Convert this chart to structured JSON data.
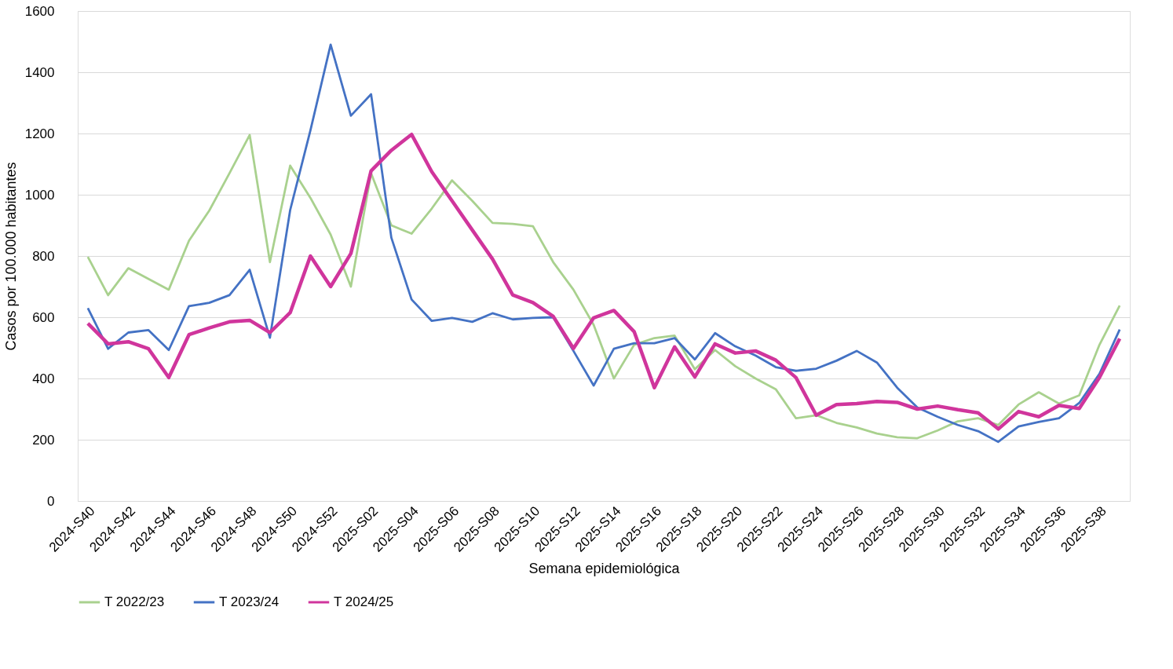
{
  "chart_data": {
    "type": "line",
    "xlabel": "Semana epidemiológica",
    "ylabel": "Casos por 100.000 habitantes",
    "categories": [
      "2024-S40",
      null,
      "2024-S42",
      null,
      "2024-S44",
      null,
      "2024-S46",
      null,
      "2024-S48",
      null,
      "2024-S50",
      null,
      "2024-S52",
      null,
      "2025-S02",
      null,
      "2025-S04",
      null,
      "2025-S06",
      null,
      "2025-S08",
      null,
      "2025-S10",
      null,
      "2025-S12",
      null,
      "2025-S14",
      null,
      "2025-S16",
      null,
      "2025-S18",
      null,
      "2025-S20",
      null,
      "2025-S22",
      null,
      "2025-S24",
      null,
      "2025-S26",
      null,
      "2025-S28",
      null,
      "2025-S30",
      null,
      "2025-S32",
      null,
      "2025-S34",
      null,
      "2025-S36",
      null,
      "2025-S38",
      null
    ],
    "ylim": [
      0,
      1600
    ],
    "yticks": [
      0,
      200,
      400,
      600,
      800,
      1000,
      1200,
      1400,
      1600
    ],
    "grid": "y",
    "legend": "bottom",
    "marker": "none",
    "line_style": "solid",
    "series": [
      {
        "name": "T 2022/23",
        "color": "#a9d18e",
        "values": [
          797,
          672,
          760,
          725,
          690,
          850,
          948,
          1070,
          1195,
          780,
          1095,
          990,
          870,
          700,
          1070,
          900,
          873,
          955,
          1047,
          980,
          908,
          905,
          897,
          780,
          690,
          575,
          400,
          510,
          532,
          540,
          430,
          493,
          440,
          400,
          365,
          270,
          280,
          255,
          240,
          220,
          208,
          205,
          230,
          260,
          270,
          248,
          315,
          355,
          318,
          345,
          510,
          638
        ]
      },
      {
        "name": "T 2023/24",
        "color": "#4472c4",
        "values": [
          630,
          497,
          550,
          558,
          493,
          636,
          647,
          672,
          755,
          533,
          950,
          1210,
          1490,
          1258,
          1328,
          860,
          658,
          588,
          598,
          585,
          613,
          593,
          598,
          600,
          490,
          377,
          497,
          515,
          515,
          532,
          462,
          548,
          505,
          475,
          437,
          425,
          432,
          458,
          490,
          452,
          370,
          305,
          275,
          248,
          228,
          193,
          243,
          258,
          270,
          320,
          415,
          560
        ]
      },
      {
        "name": "T 2024/25",
        "color": "#d0359c",
        "values": [
          580,
          513,
          520,
          497,
          403,
          543,
          565,
          585,
          590,
          550,
          615,
          800,
          700,
          808,
          1078,
          1145,
          1197,
          1075,
          980,
          885,
          790,
          673,
          648,
          603,
          498,
          598,
          622,
          553,
          370,
          503,
          405,
          513,
          483,
          490,
          460,
          403,
          280,
          315,
          318,
          325,
          322,
          300,
          310,
          298,
          288,
          235,
          292,
          275,
          312,
          302,
          403,
          530
        ]
      }
    ]
  }
}
